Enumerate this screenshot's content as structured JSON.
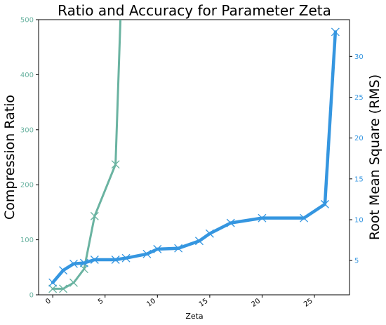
{
  "chart_data": {
    "type": "line",
    "title": "Ratio and Accuracy for Parameter Zeta",
    "xlabel": "Zeta",
    "ylabel_left": "Compression Ratio",
    "ylabel_right": "Root Mean Square (RMS)",
    "xlim": [
      -1.35,
      28.35
    ],
    "ylim_left": [
      0,
      500
    ],
    "ylim_right": [
      0.8,
      34.5
    ],
    "x_ticks": [
      0,
      5,
      10,
      15,
      20,
      25
    ],
    "y_ticks_left": [
      0,
      100,
      200,
      300,
      400,
      500
    ],
    "y_ticks_right": [
      5,
      10,
      15,
      20,
      25,
      30
    ],
    "grid": false,
    "series": [
      {
        "axis": "left",
        "color": "#6ab3a1",
        "marker": "x",
        "points": [
          [
            0,
            11
          ],
          [
            1,
            11
          ],
          [
            2,
            22
          ],
          [
            3,
            47
          ],
          [
            4,
            143
          ],
          [
            6,
            237
          ],
          [
            7,
            800
          ]
        ]
      },
      {
        "axis": "right",
        "color": "#3596e0",
        "marker": "x",
        "points": [
          [
            0,
            2.3
          ],
          [
            1,
            3.8
          ],
          [
            2,
            4.6
          ],
          [
            3,
            4.7
          ],
          [
            4,
            5.1
          ],
          [
            6,
            5.1
          ],
          [
            7,
            5.3
          ],
          [
            9,
            5.8
          ],
          [
            10,
            6.4
          ],
          [
            12,
            6.5
          ],
          [
            14,
            7.4
          ],
          [
            15,
            8.3
          ],
          [
            17,
            9.6
          ],
          [
            20,
            10.2
          ],
          [
            24,
            10.2
          ],
          [
            26,
            11.9
          ],
          [
            27,
            33.0
          ]
        ]
      }
    ]
  }
}
